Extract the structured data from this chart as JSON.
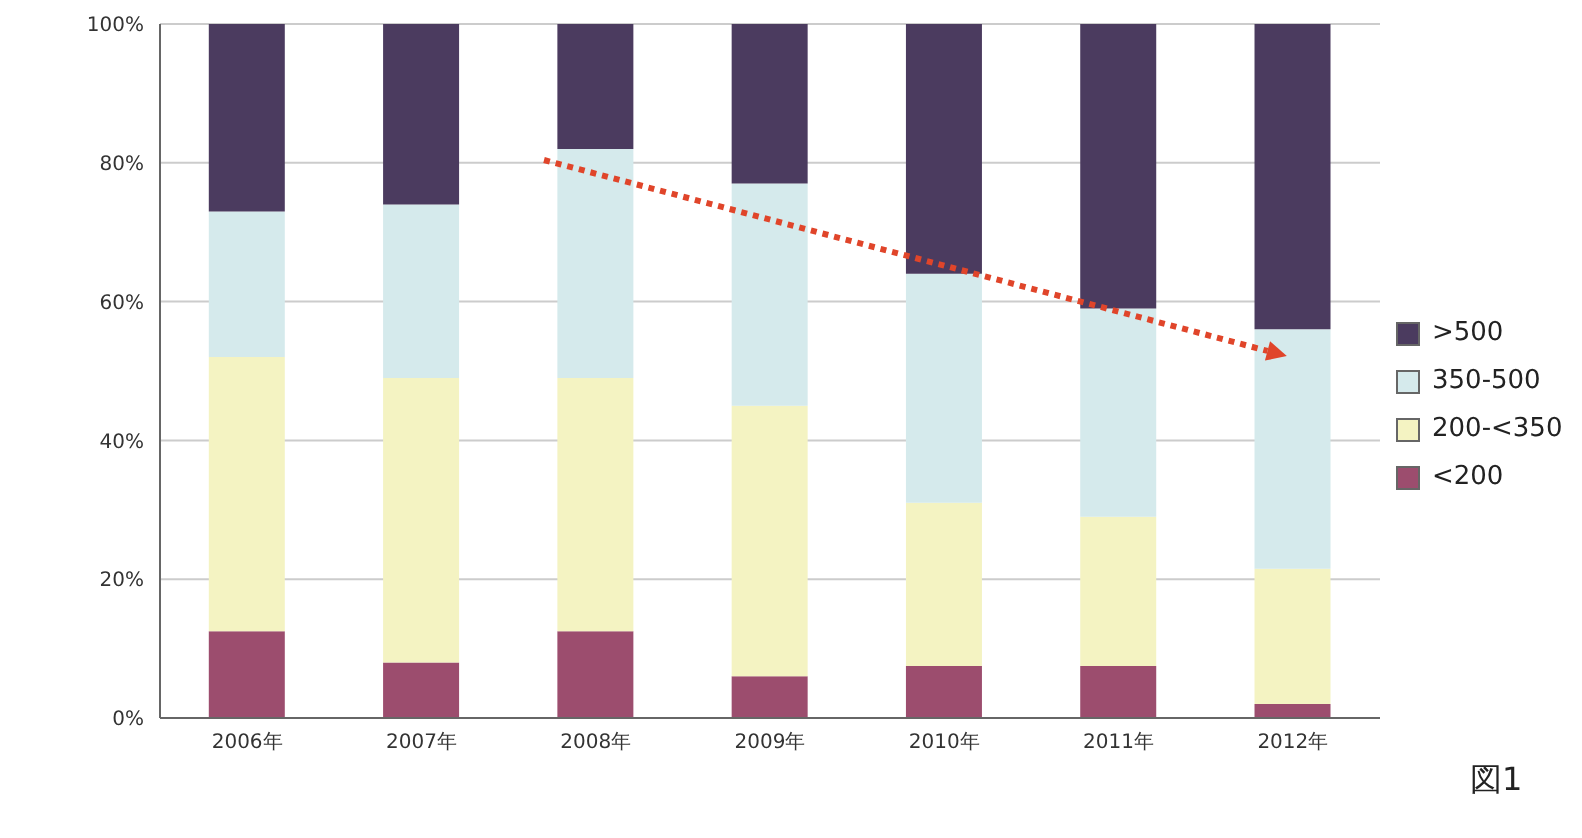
{
  "chart_data": {
    "type": "bar",
    "stacked": true,
    "categories": [
      "2006年",
      "2007年",
      "2008年",
      "2009年",
      "2010年",
      "2011年",
      "2012年"
    ],
    "series": [
      {
        "name": "<200",
        "color": "#9c4d6e",
        "values": [
          12.5,
          8,
          12.5,
          6,
          7.5,
          7.5,
          2
        ]
      },
      {
        "name": "200-<350",
        "color": "#f4f3c2",
        "values": [
          39.5,
          41,
          36.5,
          39,
          23.5,
          21.5,
          19.5
        ]
      },
      {
        "name": "350-500",
        "color": "#d5eaec",
        "values": [
          21,
          25,
          33,
          32,
          33,
          30,
          34.5
        ]
      },
      {
        "name": ">500",
        "color": "#4b3b5f",
        "values": [
          27,
          26,
          18,
          23,
          36,
          41,
          44
        ]
      }
    ],
    "ylim": [
      0,
      100
    ],
    "yticks": [
      {
        "value": 0,
        "label": "0%"
      },
      {
        "value": 20,
        "label": "20%"
      },
      {
        "value": 40,
        "label": "40%"
      },
      {
        "value": 60,
        "label": "60%"
      },
      {
        "value": 80,
        "label": "80%"
      },
      {
        "value": 100,
        "label": "100%"
      }
    ],
    "grid": "y",
    "legend": "right",
    "annotations": [
      "図1"
    ]
  }
}
